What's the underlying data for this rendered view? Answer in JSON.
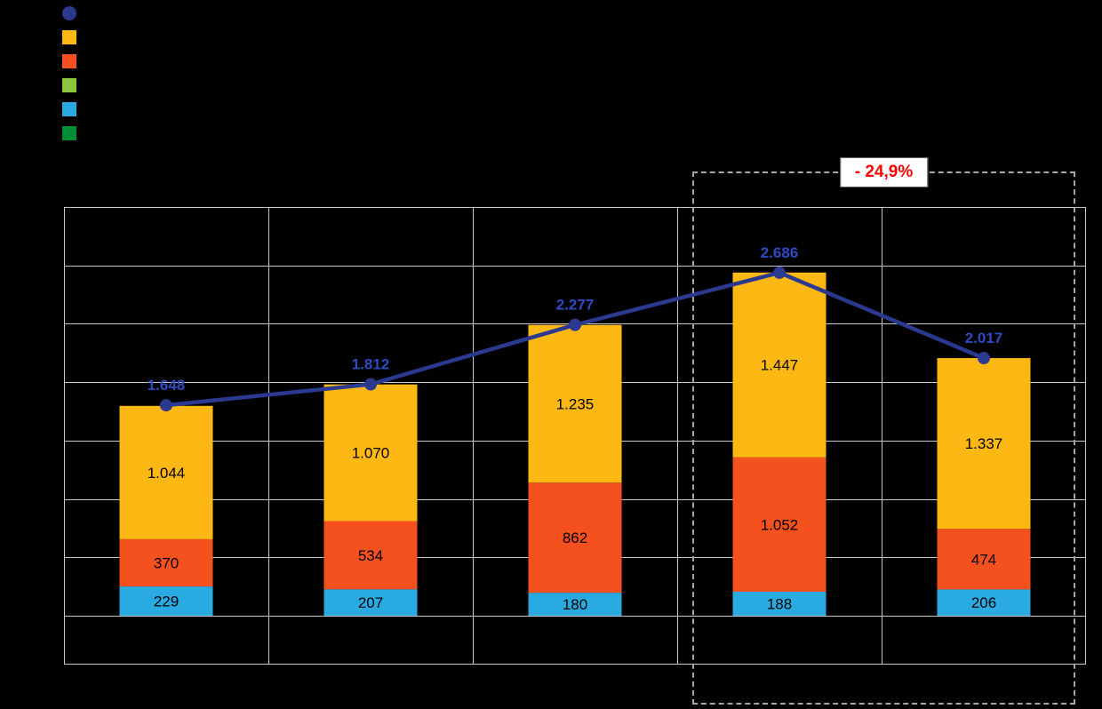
{
  "page": {
    "background": "#000000"
  },
  "annotation": {
    "text": "- 24,9%",
    "text_color": "#ff0000"
  },
  "legend": {
    "items": [
      {
        "name": "total-line",
        "marker": "circle",
        "color": "#2b3990",
        "label": ""
      },
      {
        "name": "amber",
        "marker": "square",
        "color": "#fdb813",
        "label": ""
      },
      {
        "name": "orange-red",
        "marker": "square",
        "color": "#f4511e",
        "label": ""
      },
      {
        "name": "yellow-green",
        "marker": "square",
        "color": "#8cc63f",
        "label": ""
      },
      {
        "name": "light-blue",
        "marker": "square",
        "color": "#29abe2",
        "label": ""
      },
      {
        "name": "dark-green",
        "marker": "square",
        "color": "#008d36",
        "label": ""
      }
    ]
  },
  "chart_data": {
    "type": "bar",
    "stacked": true,
    "grid": true,
    "legend_position": "top-left",
    "categories": [
      "",
      "",
      "",
      "",
      ""
    ],
    "ylim": [
      0,
      3200
    ],
    "series": [
      {
        "name": "light-blue",
        "color": "#29abe2",
        "values": [
          229,
          207,
          180,
          188,
          206
        ],
        "labels": [
          "229",
          "207",
          "180",
          "188",
          "206"
        ]
      },
      {
        "name": "orange-red",
        "color": "#f4511e",
        "values": [
          370,
          534,
          862,
          1052,
          474
        ],
        "labels": [
          "370",
          "534",
          "862",
          "1.052",
          "474"
        ]
      },
      {
        "name": "amber",
        "color": "#fdb813",
        "values": [
          1044,
          1070,
          1235,
          1447,
          1337
        ],
        "labels": [
          "1.044",
          "1.070",
          "1.235",
          "1.447",
          "1.337"
        ]
      }
    ],
    "line": {
      "name": "total",
      "color": "#2b3990",
      "label_color": "#2f4bc1",
      "values": [
        1648,
        1812,
        2277,
        2686,
        2017
      ],
      "labels": [
        "1.648",
        "1.812",
        "2.277",
        "2.686",
        "2.017"
      ]
    },
    "annotation": {
      "text": "- 24,9%",
      "spans_categories": [
        3,
        4
      ]
    }
  }
}
